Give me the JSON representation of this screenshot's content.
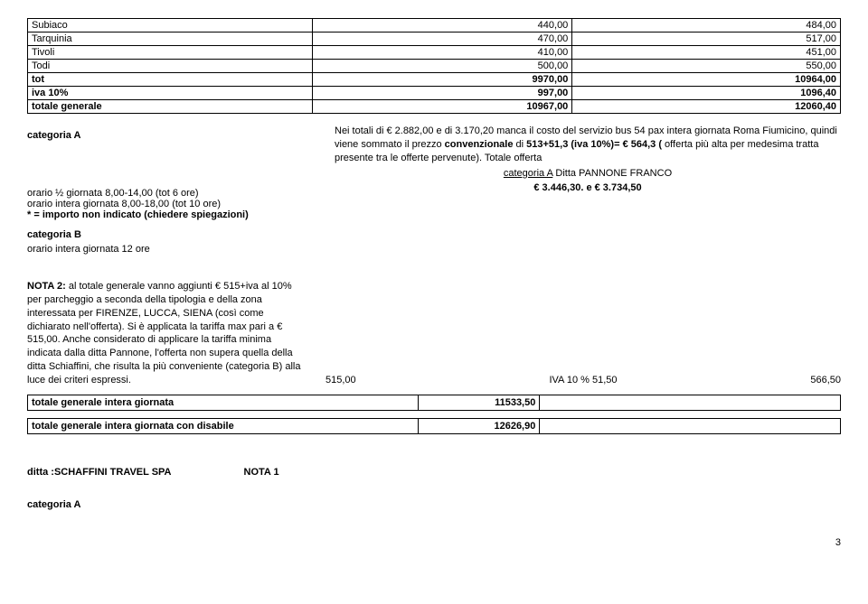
{
  "table": {
    "rows": [
      {
        "name": "Subiaco",
        "v1": "440,00",
        "v2": "484,00"
      },
      {
        "name": "Tarquinia",
        "v1": "470,00",
        "v2": "517,00"
      },
      {
        "name": "Tivoli",
        "v1": "410,00",
        "v2": "451,00"
      },
      {
        "name": "Todi",
        "v1": "500,00",
        "v2": "550,00"
      },
      {
        "name": "tot",
        "v1": "9970,00",
        "v2": "10964,00"
      },
      {
        "name": "iva 10%",
        "v1": "997,00",
        "v2": "1096,40"
      },
      {
        "name": "totale  generale",
        "v1": "10967,00",
        "v2": "12060,40"
      }
    ]
  },
  "catA": {
    "label": "categoria A",
    "orario1": "orario  ½ giornata  8,00-14,00 (tot 6 ore)",
    "orario2": "orario intera giornata  8,00-18,00 (tot 10 ore)",
    "orario3": "* = importo non indicato (chiedere spiegazioni)",
    "note_intro": "Nei totali di € 2.882,00 e di 3.170,20 manca il costo del servizio bus 54 pax intera giornata Roma Fiumicino, quindi viene sommato il prezzo ",
    "note_bold1": "convenzionale",
    "note_mid": " di ",
    "note_bold2": "513+51,3 (iva 10%)= € 564,3 ( ",
    "note_tail": "offerta più alta per medesima tratta presente tra le offerte pervenute). Totale offerta",
    "note_cat": "categoria  A",
    "note_ditta": "  Ditta PANNONE FRANCO",
    "note_totals": "€ 3.446,30.    e € 3.734,50"
  },
  "catB": {
    "label": "categoria B",
    "orario": "orario intera giornata   12 ore"
  },
  "nota2": {
    "title": "NOTA 2:",
    "body": " al totale generale vanno aggiunti € 515+iva al 10% per parcheggio  a seconda della tipologia e della zona interessata per FIRENZE, LUCCA, SIENA (così come dichiarato nell'offerta). Si è  applicata la tariffa max  pari a € 515,00. Anche considerato di applicare la tariffa minima indicata dalla ditta Pannone, l'offerta non supera quella della ditta Schiaffini, che risulta la più conveniente (categoria B) alla luce dei criteri espressi.",
    "col2": "515,00",
    "col3": "IVA 10 % 51,50",
    "col4": "566,50"
  },
  "bar1": {
    "label": "totale generale intera giornata",
    "value": "11533,50"
  },
  "bar2": {
    "label": "totale generale intera giornata con disabile",
    "value": "12626,90"
  },
  "footer": {
    "ditta_label": "ditta :SCHAFFINI TRAVEL SPA",
    "nota1": "NOTA 1",
    "catA": "categoria A"
  },
  "page": "3"
}
